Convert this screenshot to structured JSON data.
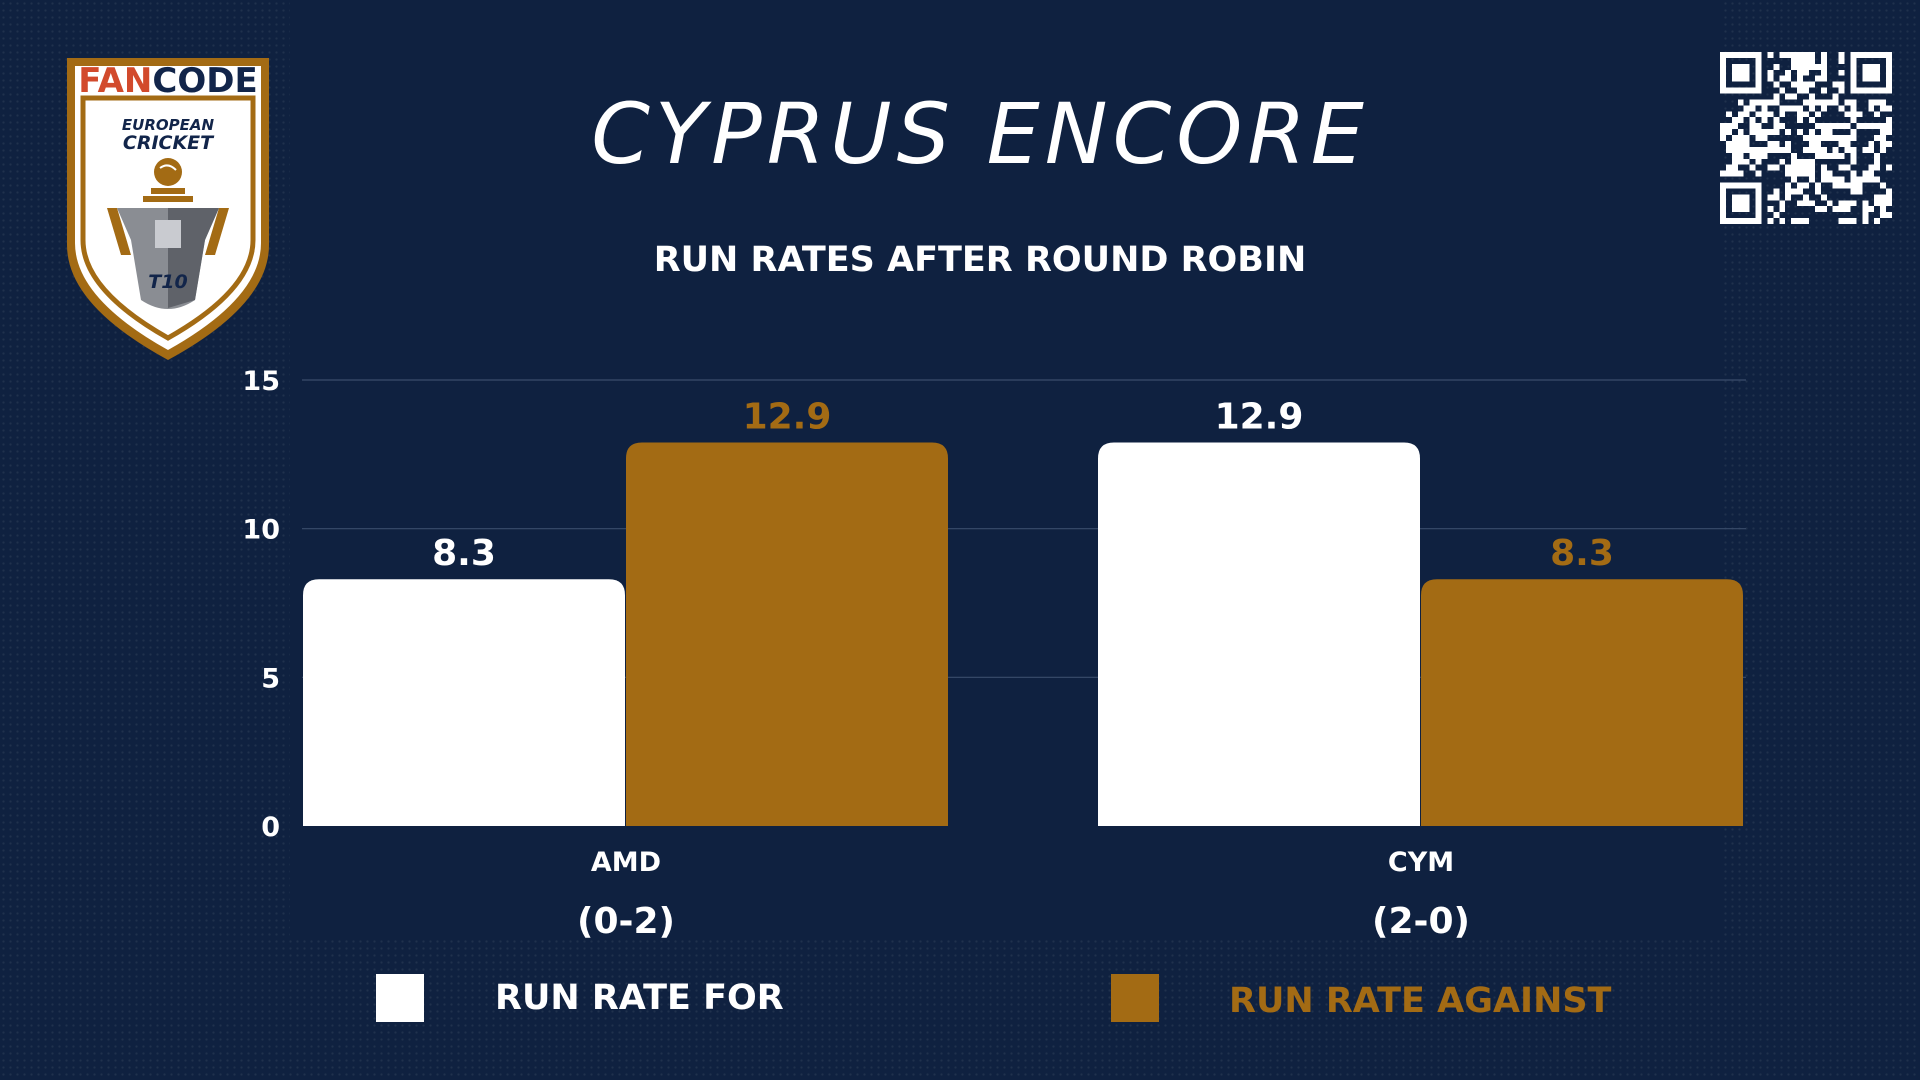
{
  "logo": {
    "brand_part1": "FAN",
    "brand_part2": "CODE",
    "line1": "EUROPEAN",
    "line2": "CRICKET",
    "badge": "T10"
  },
  "colors": {
    "background": "#0f2140",
    "run_rate_for": "#ffffff",
    "run_rate_against": "#a36b14",
    "grid": "#3a4d6b"
  },
  "chart_data": {
    "type": "bar",
    "title": "CYPRUS ENCORE",
    "subtitle": "RUN RATES AFTER ROUND ROBIN",
    "categories": [
      "AMD",
      "CYM"
    ],
    "records": [
      "(0-2)",
      "(2-0)"
    ],
    "series": [
      {
        "name": "RUN RATE FOR",
        "values": [
          8.3,
          12.9
        ]
      },
      {
        "name": "RUN RATE AGAINST",
        "values": [
          12.9,
          8.3
        ]
      }
    ],
    "ylim": [
      0,
      15
    ],
    "yticks": [
      0,
      5,
      10,
      15
    ],
    "grid": true,
    "legend_position": "bottom"
  }
}
